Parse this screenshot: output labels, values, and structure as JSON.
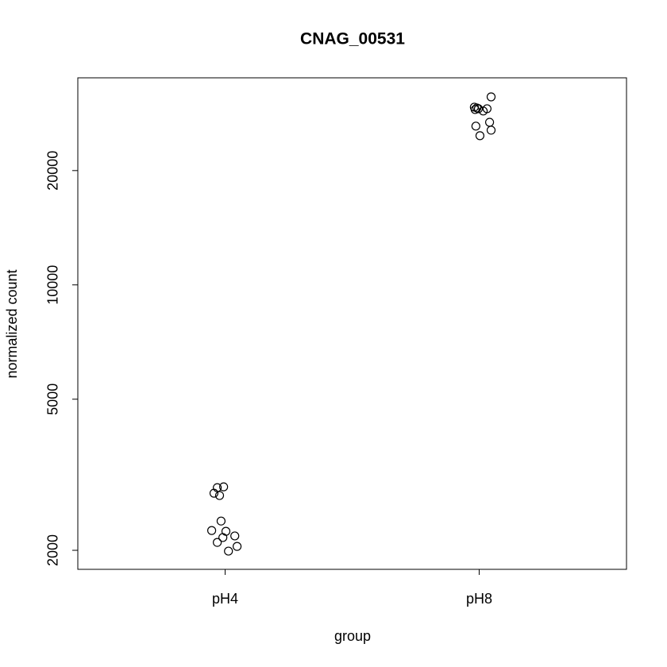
{
  "chart_data": {
    "type": "scatter",
    "title": "CNAG_00531",
    "x_label": "group",
    "y_label": "normalized count",
    "x": [
      0.969,
      0.994,
      0.956,
      0.978,
      0.984,
      0.947,
      1.003,
      1.038,
      0.991,
      0.969,
      1.047,
      1.013,
      2.047,
      1.981,
      1.991,
      1.997,
      1.984,
      2.031,
      2.016,
      2.041,
      1.987,
      2.047,
      2.003
    ],
    "values": [
      2924,
      2938,
      2827,
      2788,
      2388,
      2255,
      2244,
      2182,
      2161,
      2098,
      2048,
      1990,
      31270,
      29380,
      29240,
      29110,
      28960,
      29100,
      28700,
      26800,
      26190,
      25550,
      24710
    ],
    "xlim": [
      0.42,
      2.58
    ],
    "xticks": [
      {
        "value": 1,
        "label": "pH4"
      },
      {
        "value": 2,
        "label": "pH8"
      }
    ],
    "ylim": [
      1782,
      35100
    ],
    "yticks": [
      2000,
      5000,
      10000,
      20000
    ],
    "y_scale": "log",
    "grid": false,
    "color": "#000000"
  }
}
